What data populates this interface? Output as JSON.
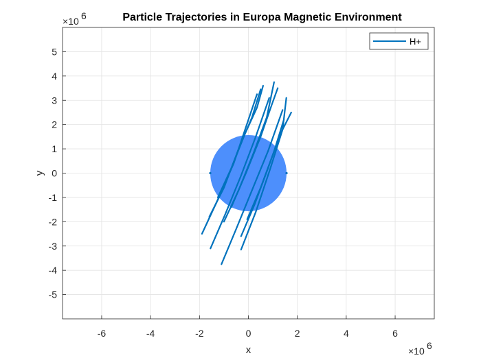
{
  "chart_data": {
    "type": "line",
    "title": "Particle Trajectories in Europa Magnetic Environment",
    "xlabel": "x",
    "ylabel": "y",
    "x_exponent_label": "×10",
    "x_exponent_power": "6",
    "y_exponent_label": "×10",
    "y_exponent_power": "6",
    "xlim": [
      -7.6,
      7.6
    ],
    "ylim": [
      -6,
      6
    ],
    "x_ticks": [
      -6,
      -4,
      -2,
      0,
      2,
      4,
      6
    ],
    "x_tick_labels": [
      "-6",
      "-4",
      "-2",
      "0",
      "2",
      "4",
      "6"
    ],
    "y_ticks": [
      -5,
      -4,
      -3,
      -2,
      -1,
      0,
      1,
      2,
      3,
      4,
      5
    ],
    "y_tick_labels": [
      "-5",
      "-4",
      "-3",
      "-2",
      "-1",
      "0",
      "1",
      "2",
      "3",
      "4",
      "5"
    ],
    "grid": true,
    "legend_location": "top-right",
    "body": {
      "shape": "circle",
      "center": [
        0,
        0
      ],
      "radius": 1.56,
      "color": "#4d8ffc"
    },
    "series": [
      {
        "name": "H+",
        "color": "#0072BD",
        "trajectories": [
          [
            [
              -1.9,
              -2.5
            ],
            [
              -1.3,
              -1.2
            ],
            [
              -0.6,
              0.4
            ],
            [
              0.0,
              2.2
            ],
            [
              0.35,
              3.25
            ]
          ],
          [
            [
              -1.6,
              -1.8
            ],
            [
              -1.0,
              -0.6
            ],
            [
              -0.4,
              1.0
            ],
            [
              0.15,
              2.3
            ],
            [
              0.5,
              3.45
            ]
          ],
          [
            [
              -1.55,
              -3.1
            ],
            [
              -0.95,
              -1.7
            ],
            [
              -0.3,
              -0.1
            ],
            [
              0.3,
              1.5
            ],
            [
              0.85,
              3.1
            ]
          ],
          [
            [
              -1.1,
              -3.75
            ],
            [
              -0.5,
              -2.3
            ],
            [
              0.15,
              -0.7
            ],
            [
              0.8,
              0.9
            ],
            [
              1.4,
              2.6
            ]
          ],
          [
            [
              -1.0,
              -2.0
            ],
            [
              -0.4,
              -0.7
            ],
            [
              0.2,
              0.8
            ],
            [
              0.75,
              2.3
            ],
            [
              1.05,
              3.75
            ]
          ],
          [
            [
              -0.3,
              -2.6
            ],
            [
              0.25,
              -1.3
            ],
            [
              0.8,
              0.2
            ],
            [
              1.3,
              1.6
            ],
            [
              1.75,
              2.5
            ]
          ],
          [
            [
              -0.3,
              -3.15
            ],
            [
              0.3,
              -1.6
            ],
            [
              0.9,
              0.2
            ],
            [
              1.4,
              1.8
            ],
            [
              1.55,
              3.1
            ]
          ],
          [
            [
              -0.7,
              -1.4
            ],
            [
              -0.1,
              0.0
            ],
            [
              0.5,
              1.5
            ],
            [
              0.95,
              2.8
            ],
            [
              1.2,
              3.5
            ]
          ],
          [
            [
              -1.25,
              -1.0
            ],
            [
              -0.7,
              0.2
            ],
            [
              -0.15,
              1.6
            ],
            [
              0.35,
              2.7
            ],
            [
              0.6,
              3.6
            ]
          ],
          [
            [
              -0.05,
              -1.9
            ],
            [
              0.5,
              -0.6
            ],
            [
              1.05,
              0.9
            ],
            [
              1.45,
              2.2
            ]
          ]
        ]
      }
    ]
  }
}
